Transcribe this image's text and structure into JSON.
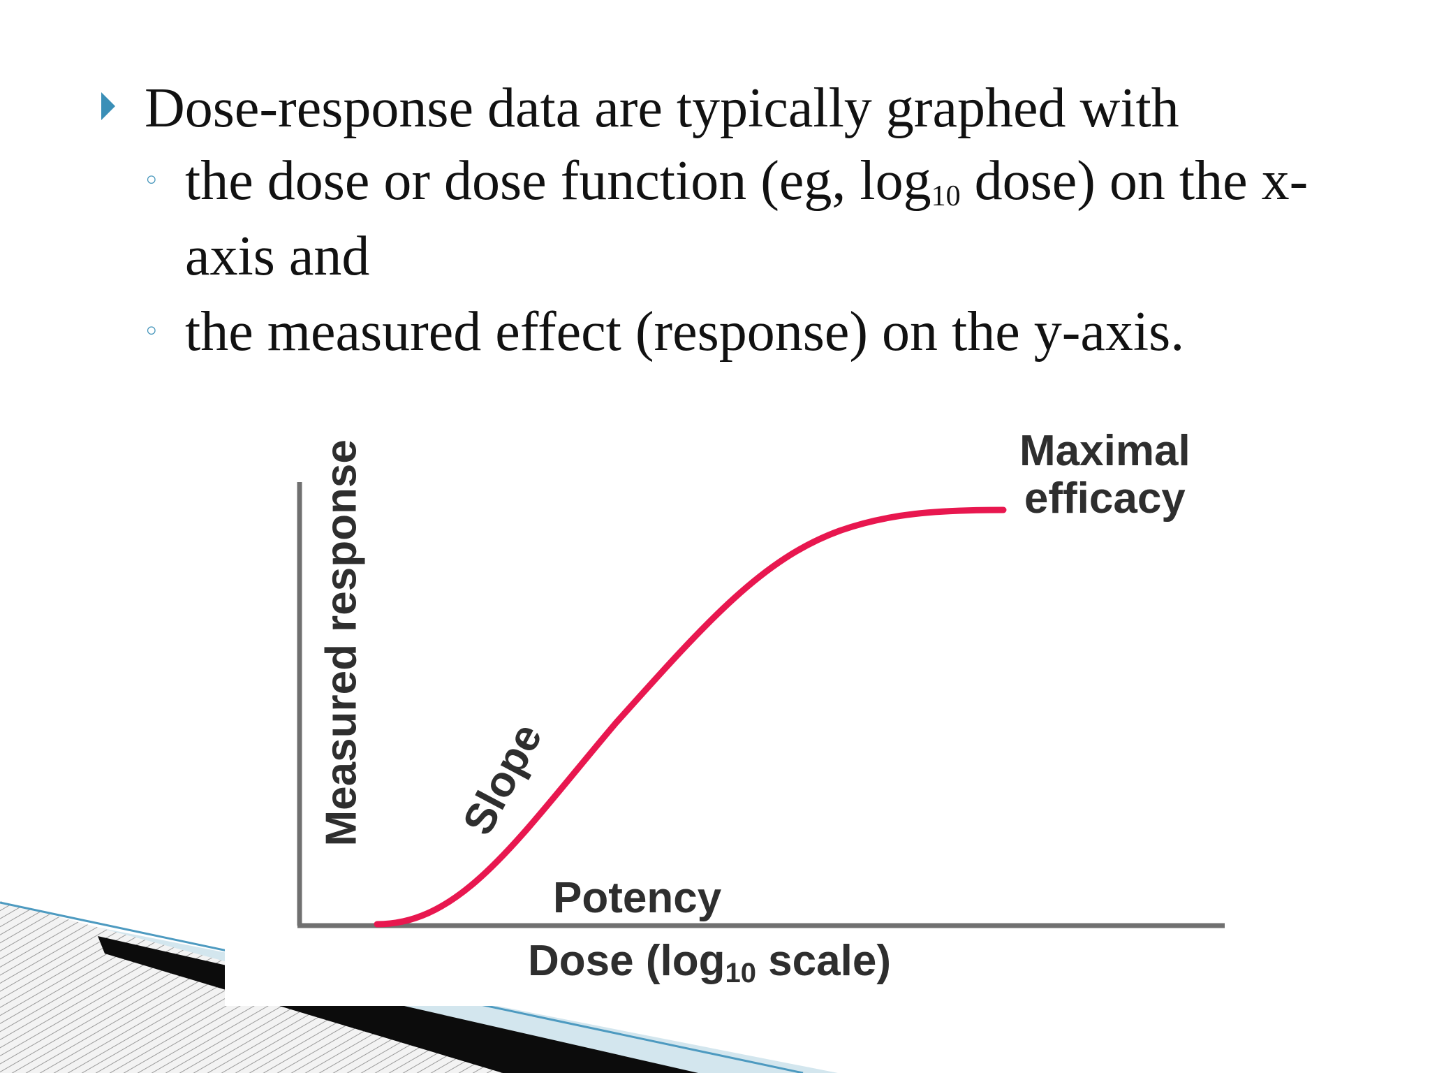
{
  "bullets": {
    "main": "Dose-response data are typically graphed with",
    "sub1": {
      "before": "the dose or dose function (eg, log",
      "subscript": "10",
      "after": " dose) on the x-",
      "line2": "axis and"
    },
    "sub2": "the measured effect (response) on the y-axis."
  },
  "figure": {
    "y_axis_label": "Measured response",
    "x_axis_label": {
      "before": "Dose (log",
      "subscript": "10",
      "after": " scale)"
    },
    "annotations": {
      "max_efficacy_line1": "Maximal",
      "max_efficacy_line2": "efficacy",
      "slope": "Slope",
      "potency": "Potency"
    }
  },
  "colors": {
    "curve": "#e8174f",
    "bullet_marker": "#3a8fb7",
    "axes": "#707070"
  }
}
